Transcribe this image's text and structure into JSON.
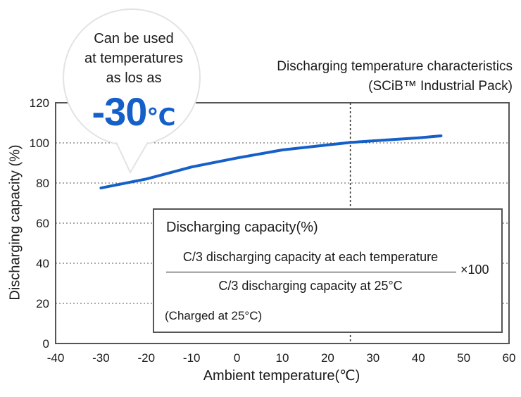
{
  "chart_data": {
    "type": "line",
    "title": [
      "Discharging temperature characteristics",
      "(SCiB™ Industrial Pack)"
    ],
    "xlabel": "Ambient temperature(℃)",
    "ylabel": "Discharging capacity (%)",
    "xlim": [
      -40,
      60
    ],
    "ylim": [
      0,
      120
    ],
    "xticks": [
      "-40",
      "-30",
      "-20",
      "-10",
      "0",
      "10",
      "20",
      "30",
      "40",
      "50",
      "60"
    ],
    "yticks": [
      "0",
      "20",
      "40",
      "60",
      "80",
      "100",
      "120"
    ],
    "grid": "dotted horizontal",
    "series": [
      {
        "color": "#1560c8",
        "x": [
          -30,
          -20,
          -10,
          0,
          10,
          20,
          25,
          30,
          40,
          45
        ],
        "y": [
          77.5,
          82,
          88,
          92.5,
          96.5,
          99,
          100.2,
          101,
          102.5,
          103.5
        ]
      }
    ],
    "reference_line": {
      "x": 25,
      "style": "dotted"
    }
  },
  "callout": {
    "line1": "Can be used",
    "line2": "at temperatures",
    "line3": "as los as",
    "value": "-30",
    "unit": "℃",
    "color": "#1560c8"
  },
  "formula": {
    "heading": "Discharging capacity(%)",
    "numerator": "C/3 discharging capacity at each temperature",
    "denominator": "C/3 discharging capacity at 25°C",
    "multiplier": "×100",
    "note": "(Charged at 25°C)"
  }
}
